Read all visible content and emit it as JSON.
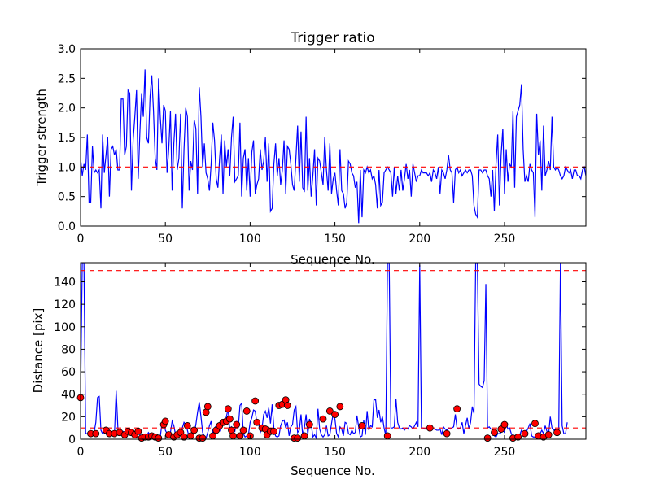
{
  "figure": {
    "background": "#ffffff",
    "line_color": "#0000ff",
    "threshold_color": "#ff0000",
    "marker_color": "#ff0000"
  },
  "chart_data": [
    {
      "type": "line",
      "title": "Trigger ratio",
      "xlabel": "Sequence No.",
      "ylabel": "Trigger strength",
      "xlim": [
        0,
        298
      ],
      "ylim": [
        0,
        3.0
      ],
      "xticks": [
        "0",
        "50",
        "100",
        "150",
        "200",
        "250"
      ],
      "yticks": [
        "0.0",
        "0.5",
        "1.0",
        "1.5",
        "2.0",
        "2.5",
        "3.0"
      ],
      "grid": false,
      "reference_lines": [
        {
          "y": 1.0,
          "style": "dashed",
          "color": "#ff0000"
        }
      ],
      "series": [
        {
          "color": "#0000ff",
          "values": [
            1.15,
            0.85,
            1.05,
            0.95,
            1.55,
            0.4,
            0.4,
            1.35,
            0.9,
            0.95,
            0.9,
            0.95,
            0.3,
            1.55,
            0.9,
            1.2,
            1.5,
            0.5,
            1.3,
            1.35,
            1.2,
            1.3,
            0.95,
            0.95,
            2.15,
            2.15,
            1.2,
            1.35,
            2.3,
            2.25,
            0.6,
            1.45,
            1.85,
            2.3,
            0.8,
            1.6,
            2.25,
            1.85,
            2.65,
            1.5,
            1.4,
            2.2,
            2.55,
            1.95,
            1.15,
            0.95,
            2.5,
            1.85,
            1.4,
            2.05,
            1.95,
            0.9,
            1.3,
            1.95,
            0.6,
            1.4,
            1.9,
            0.95,
            1.15,
            1.9,
            0.3,
            1.3,
            2.0,
            1.85,
            0.6,
            1.1,
            0.95,
            1.8,
            1.65,
            0.55,
            2.35,
            1.85,
            1.0,
            1.4,
            0.9,
            0.8,
            0.6,
            1.05,
            1.75,
            1.45,
            0.8,
            0.65,
            1.15,
            1.55,
            0.55,
            1.45,
            1.0,
            1.3,
            0.85,
            1.5,
            1.85,
            0.75,
            0.8,
            0.85,
            1.75,
            0.5,
            1.15,
            1.3,
            0.6,
            1.15,
            0.5,
            1.25,
            1.45,
            0.55,
            0.7,
            0.8,
            1.3,
            0.95,
            1.1,
            1.5,
            0.75,
            1.4,
            0.25,
            0.3,
            1.05,
            1.4,
            0.85,
            1.15,
            0.7,
            0.95,
            1.45,
            0.55,
            1.35,
            1.3,
            1.05,
            0.7,
            0.6,
            1.15,
            1.7,
            0.75,
            1.6,
            0.65,
            0.6,
            1.85,
            0.6,
            1.15,
            0.5,
            0.85,
            1.3,
            0.35,
            1.15,
            1.1,
            0.9,
            0.7,
            1.5,
            0.95,
            0.6,
            1.4,
            0.55,
            0.8,
            0.9,
            0.6,
            0.35,
            1.3,
            0.6,
            0.55,
            0.3,
            0.4,
            1.1,
            1.05,
            0.9,
            0.85,
            0.65,
            0.75,
            0.05,
            0.95,
            0.15,
            0.95,
            0.9,
            1.0,
            0.9,
            0.95,
            0.8,
            0.85,
            0.7,
            0.3,
            0.95,
            0.35,
            0.4,
            0.9,
            0.95,
            1.0,
            0.95,
            0.9,
            0.5,
            1.0,
            0.55,
            0.85,
            0.6,
            0.95,
            0.6,
            0.8,
            1.05,
            0.8,
            0.95,
            0.5,
            1.05,
            0.9,
            0.75,
            0.85,
            0.85,
            0.95,
            0.9,
            0.9,
            0.9,
            0.85,
            0.9,
            0.75,
            0.95,
            0.9,
            0.8,
            1.0,
            0.55,
            0.95,
            0.9,
            0.8,
            0.95,
            1.2,
            0.95,
            0.9,
            0.4,
            0.95,
            1.0,
            0.9,
            0.95,
            0.85,
            0.9,
            0.95,
            0.9,
            0.95,
            0.95,
            0.85,
            0.35,
            0.2,
            0.15,
            0.95,
            0.95,
            0.9,
            0.95,
            0.95,
            0.85,
            0.8,
            0.5,
            0.95,
            0.25,
            1.05,
            1.55,
            0.35,
            1.2,
            1.65,
            0.55,
            1.3,
            0.75,
            1.05,
            1.0,
            1.95,
            0.65,
            1.85,
            1.95,
            2.05,
            2.4,
            1.3,
            0.75,
            0.85,
            0.75,
            1.05,
            0.95,
            0.9,
            0.15,
            1.9,
            1.2,
            1.45,
            0.6,
            1.7,
            0.85,
            0.95,
            1.1,
            0.95,
            1.85,
            1.0,
            0.95,
            1.0,
            0.95,
            0.85,
            0.8,
            0.85,
            1.0,
            0.95,
            0.9,
            0.95,
            0.8,
            0.95,
            0.95,
            0.85,
            0.85,
            0.8,
            0.95,
            1.0,
            0.85
          ]
        }
      ]
    },
    {
      "type": "line",
      "title": "",
      "xlabel": "Sequence No.",
      "ylabel": "Distance [pix]",
      "xlim": [
        0,
        298
      ],
      "ylim": [
        0,
        157
      ],
      "xticks": [
        "0",
        "50",
        "100",
        "150",
        "200",
        "250"
      ],
      "yticks": [
        "0",
        "20",
        "40",
        "60",
        "80",
        "100",
        "120",
        "140"
      ],
      "grid": false,
      "reference_lines": [
        {
          "y": 150,
          "style": "dashed",
          "color": "#ff0000"
        },
        {
          "y": 10,
          "style": "dashed",
          "color": "#ff0000"
        }
      ],
      "series": [
        {
          "color": "#0000ff",
          "values": [
            37,
            157,
            157,
            5,
            5,
            6,
            5,
            6,
            6,
            15,
            37,
            38,
            8,
            5,
            5,
            6,
            5,
            8,
            6,
            6,
            5,
            43,
            10,
            6,
            4,
            7,
            6,
            8,
            6,
            4,
            6,
            6,
            5,
            7,
            5,
            4,
            3,
            3,
            2,
            3,
            6,
            4,
            3,
            3,
            3,
            2,
            2,
            2,
            14,
            17,
            8,
            5,
            6,
            6,
            16,
            12,
            4,
            2,
            4,
            6,
            10,
            15,
            13,
            8,
            2,
            3,
            8,
            5,
            13,
            24,
            33,
            20,
            6,
            3,
            1,
            6,
            12,
            16,
            4,
            10,
            12,
            13,
            7,
            14,
            14,
            15,
            20,
            27,
            8,
            11,
            9,
            7,
            16,
            10,
            30,
            32,
            5,
            2,
            3,
            4,
            15,
            19,
            26,
            25,
            14,
            14,
            6,
            10,
            22,
            25,
            19,
            28,
            14,
            31,
            10,
            3,
            2,
            3,
            12,
            16,
            17,
            10,
            15,
            3,
            11,
            13,
            26,
            29,
            6,
            8,
            22,
            3,
            10,
            22,
            4,
            18,
            14,
            2,
            4,
            1,
            27,
            9,
            4,
            2,
            4,
            12,
            3,
            4,
            14,
            23,
            18,
            5,
            2,
            11,
            9,
            3,
            15,
            14,
            5,
            4,
            8,
            5,
            6,
            21,
            11,
            2,
            3,
            17,
            4,
            25,
            8,
            12,
            11,
            35,
            35,
            19,
            26,
            15,
            20,
            10,
            3,
            157,
            157,
            10,
            10,
            11,
            36,
            15,
            10,
            9,
            10,
            8,
            10,
            9,
            12,
            11,
            9,
            12,
            15,
            11,
            155,
            10,
            10,
            9,
            10,
            10,
            9,
            10,
            9,
            9,
            8,
            8,
            9,
            4,
            11,
            9,
            8,
            10,
            9,
            10,
            11,
            22,
            10,
            9,
            10,
            15,
            5,
            12,
            19,
            9,
            15,
            29,
            23,
            157,
            157,
            49,
            47,
            46,
            52,
            138,
            10,
            11,
            9,
            9,
            3,
            2,
            5,
            5,
            6,
            8,
            6,
            14,
            9,
            10,
            5,
            2,
            3,
            1,
            1,
            4,
            8,
            3,
            5,
            7,
            10,
            14,
            3,
            2,
            2,
            3,
            4,
            5,
            8,
            5,
            12,
            7,
            4,
            20,
            10,
            8,
            9,
            3,
            7,
            157,
            12,
            5,
            5,
            15
          ]
        }
      ],
      "markers": {
        "color": "#ff0000",
        "edgecolor": "#000000",
        "points": [
          [
            0,
            37
          ],
          [
            6,
            5
          ],
          [
            9,
            5
          ],
          [
            15,
            8
          ],
          [
            17,
            5
          ],
          [
            20,
            5
          ],
          [
            23,
            6
          ],
          [
            26,
            4
          ],
          [
            28,
            7
          ],
          [
            30,
            6
          ],
          [
            32,
            4
          ],
          [
            34,
            7
          ],
          [
            36,
            1
          ],
          [
            38,
            2
          ],
          [
            40,
            2
          ],
          [
            42,
            3
          ],
          [
            44,
            2
          ],
          [
            46,
            1
          ],
          [
            49,
            13
          ],
          [
            50,
            16
          ],
          [
            52,
            4
          ],
          [
            55,
            2
          ],
          [
            57,
            4
          ],
          [
            59,
            6
          ],
          [
            61,
            2
          ],
          [
            63,
            12
          ],
          [
            65,
            3
          ],
          [
            67,
            8
          ],
          [
            70,
            1
          ],
          [
            72,
            1
          ],
          [
            74,
            24
          ],
          [
            75,
            29
          ],
          [
            78,
            3
          ],
          [
            80,
            8
          ],
          [
            82,
            12
          ],
          [
            84,
            15
          ],
          [
            86,
            16
          ],
          [
            87,
            27
          ],
          [
            88,
            18
          ],
          [
            89,
            8
          ],
          [
            90,
            3
          ],
          [
            92,
            13
          ],
          [
            94,
            3
          ],
          [
            96,
            8
          ],
          [
            98,
            25
          ],
          [
            100,
            3
          ],
          [
            103,
            34
          ],
          [
            104,
            15
          ],
          [
            107,
            10
          ],
          [
            109,
            9
          ],
          [
            110,
            4
          ],
          [
            112,
            7
          ],
          [
            114,
            7
          ],
          [
            117,
            30
          ],
          [
            119,
            31
          ],
          [
            121,
            35
          ],
          [
            122,
            30
          ],
          [
            126,
            1
          ],
          [
            128,
            1
          ],
          [
            132,
            3
          ],
          [
            135,
            13
          ],
          [
            143,
            18
          ],
          [
            147,
            25
          ],
          [
            150,
            22
          ],
          [
            153,
            29
          ],
          [
            166,
            12
          ],
          [
            181,
            3
          ],
          [
            206,
            10
          ],
          [
            216,
            5
          ],
          [
            222,
            27
          ],
          [
            240,
            1
          ],
          [
            244,
            6
          ],
          [
            248,
            9
          ],
          [
            250,
            13
          ],
          [
            255,
            1
          ],
          [
            258,
            2
          ],
          [
            262,
            5
          ],
          [
            268,
            14
          ],
          [
            270,
            3
          ],
          [
            273,
            2
          ],
          [
            276,
            4
          ],
          [
            281,
            6
          ]
        ]
      }
    }
  ]
}
